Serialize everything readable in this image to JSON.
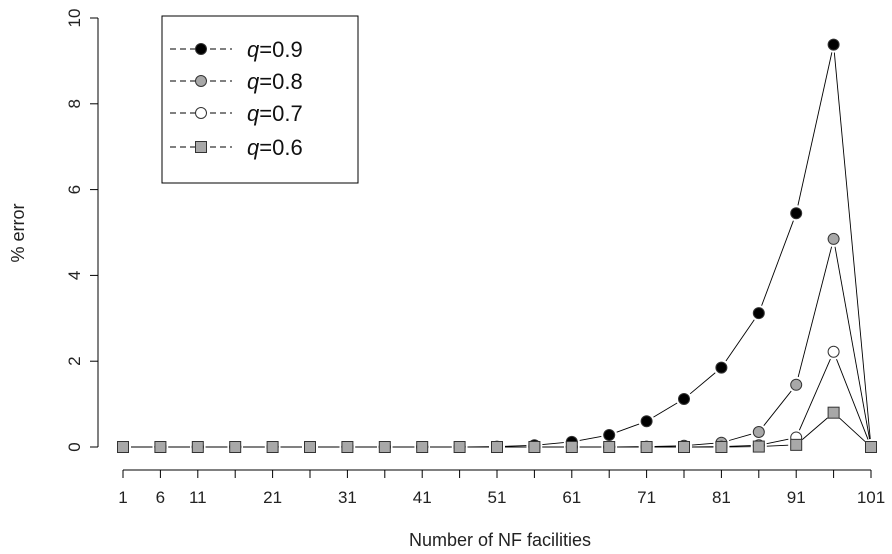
{
  "chart_data": {
    "type": "line",
    "xlabel": "Number of NF facilities",
    "ylabel": "% error",
    "ylim": [
      0,
      10
    ],
    "xlim": [
      1,
      101
    ],
    "x_ticks": [
      1,
      6,
      11,
      21,
      31,
      41,
      51,
      61,
      71,
      81,
      91,
      101
    ],
    "y_ticks": [
      0,
      2,
      4,
      6,
      8,
      10
    ],
    "grid": false,
    "legend_position": "top-left",
    "x": [
      1,
      6,
      11,
      16,
      21,
      26,
      31,
      36,
      41,
      46,
      51,
      56,
      61,
      66,
      71,
      76,
      81,
      86,
      91,
      96,
      101
    ],
    "series": [
      {
        "name": "q=0.9",
        "q_label": "q",
        "value_label": "=0.9",
        "marker": "circle",
        "fill": "#000000",
        "values": [
          0,
          0,
          0,
          0,
          0,
          0,
          0,
          0,
          0,
          0,
          0.01,
          0.04,
          0.12,
          0.28,
          0.6,
          1.12,
          1.85,
          3.12,
          5.45,
          9.38,
          0
        ]
      },
      {
        "name": "q=0.8",
        "q_label": "q",
        "value_label": "=0.8",
        "marker": "circle",
        "fill": "#a8a8a8",
        "values": [
          0,
          0,
          0,
          0,
          0,
          0,
          0,
          0,
          0,
          0,
          0,
          0,
          0,
          0,
          0.01,
          0.03,
          0.1,
          0.35,
          1.45,
          4.85,
          0
        ]
      },
      {
        "name": "q=0.7",
        "q_label": "q",
        "value_label": "=0.7",
        "marker": "circle",
        "fill": "#ffffff",
        "values": [
          0,
          0,
          0,
          0,
          0,
          0,
          0,
          0,
          0,
          0,
          0,
          0,
          0,
          0,
          0,
          0,
          0.01,
          0.04,
          0.22,
          2.22,
          0
        ]
      },
      {
        "name": "q=0.6",
        "q_label": "q",
        "value_label": "=0.6",
        "marker": "square",
        "fill": "#a8a8a8",
        "values": [
          0,
          0,
          0,
          0,
          0,
          0,
          0,
          0,
          0,
          0,
          0,
          0,
          0,
          0,
          0,
          0,
          0,
          0.01,
          0.05,
          0.8,
          0
        ]
      }
    ]
  }
}
